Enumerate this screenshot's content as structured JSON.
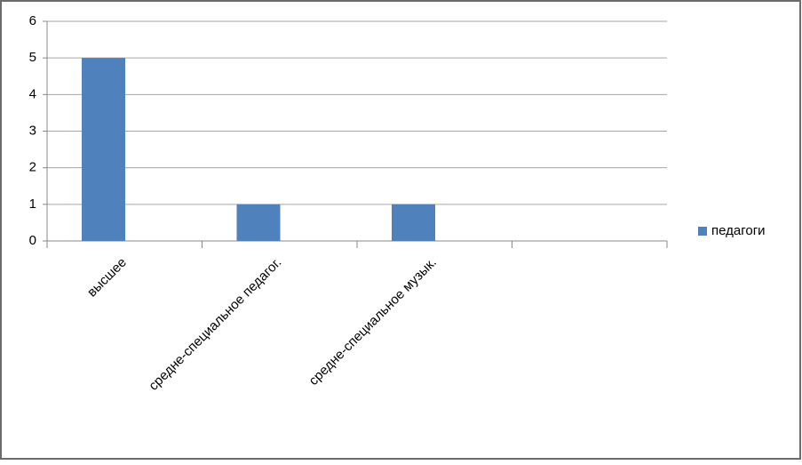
{
  "chart_data": {
    "type": "bar",
    "categories": [
      "высшее",
      "средне-специальное педагог.",
      "средне-специальное музык.",
      null
    ],
    "series": [
      {
        "name": "педагоги",
        "color": "#4f81bd",
        "values": [
          5,
          1,
          1,
          null
        ]
      }
    ],
    "ylim": [
      0,
      6
    ],
    "yticks": [
      0,
      1,
      2,
      3,
      4,
      5,
      6
    ],
    "grid": true,
    "legend": "right"
  }
}
